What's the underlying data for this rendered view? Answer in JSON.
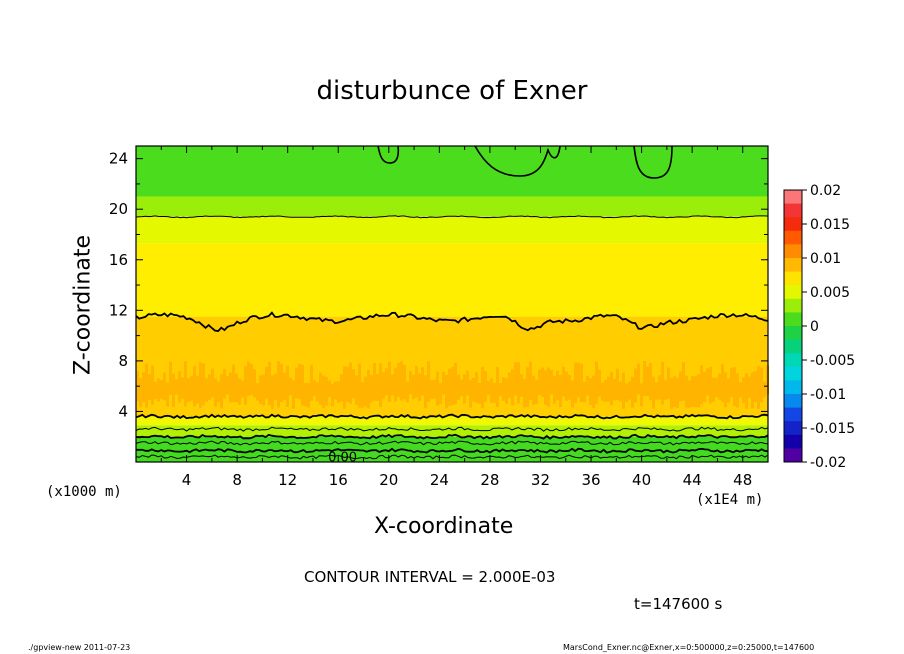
{
  "chart_data": {
    "type": "heatmap",
    "title": "disturbunce of Exner",
    "xlabel": "X-coordinate",
    "ylabel": "Z-coordinate",
    "x_unit_label": "(x1000 m)",
    "x_scale_label": "(x1E4 m)",
    "xlim": [
      0,
      50
    ],
    "ylim": [
      0,
      25
    ],
    "x_ticks": [
      4,
      8,
      12,
      16,
      20,
      24,
      28,
      32,
      36,
      40,
      44,
      48
    ],
    "y_ticks": [
      4,
      8,
      12,
      16,
      20,
      24
    ],
    "contour_interval_text": "CONTOUR INTERVAL = 2.000E-03",
    "contour_label": "0.00",
    "time_text": "t=147600 s",
    "colorbar": {
      "tick_labels": [
        "0.02",
        "0.015",
        "0.01",
        "0.005",
        "0",
        "-0.005",
        "-0.01",
        "-0.015",
        "-0.02"
      ],
      "range": [
        -0.02,
        0.02
      ]
    },
    "bands": [
      {
        "z_top": 25,
        "z_bottom": 21,
        "value": 0.001
      },
      {
        "z_top": 21,
        "z_bottom": 19.4,
        "value": 0.003
      },
      {
        "z_top": 19.4,
        "z_bottom": 17.3,
        "value": 0.005
      },
      {
        "z_top": 17.3,
        "z_bottom": 11.5,
        "value": 0.0065
      },
      {
        "z_top": 11.5,
        "z_bottom": 3.6,
        "value": 0.008
      },
      {
        "z_top": 3.6,
        "z_bottom": 2.9,
        "value": 0.0055
      },
      {
        "z_top": 2.9,
        "z_bottom": 2.0,
        "value": 0.0035
      },
      {
        "z_top": 2.0,
        "z_bottom": 0,
        "value": 0.0008
      }
    ],
    "contour_levels_z": [
      19.4,
      3.6,
      2.6,
      2.0,
      1.5,
      0.9,
      0.4
    ],
    "main_contour_z": 11.4
  },
  "footer": {
    "left": "./gpview-new   2011-07-23",
    "right": "MarsCond_Exner.nc@Exner,x=0:500000,z=0:25000,t=147600"
  }
}
